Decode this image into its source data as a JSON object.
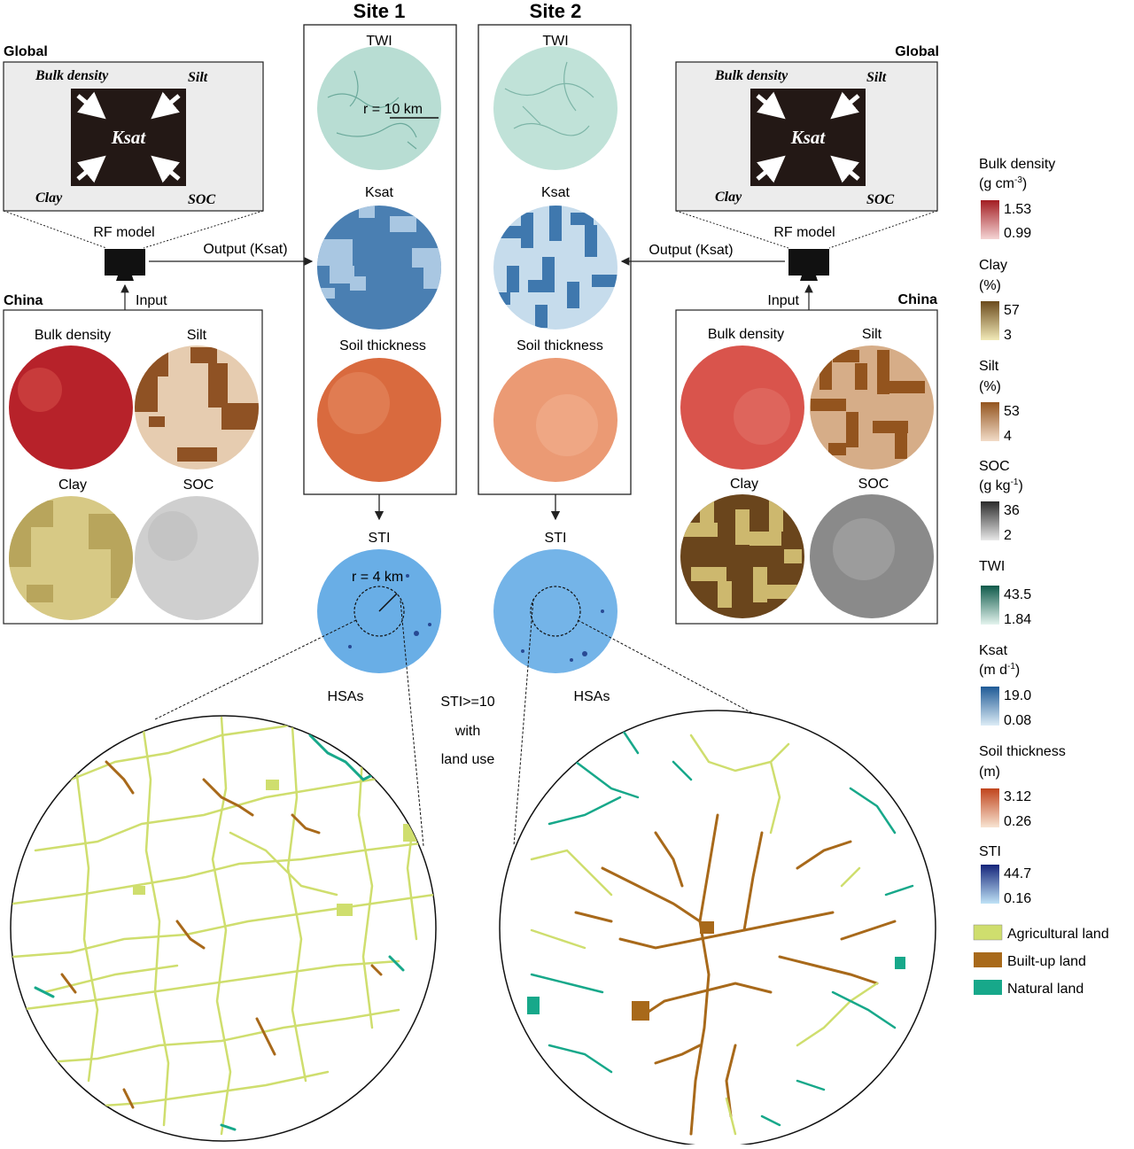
{
  "sites": {
    "site1": {
      "title": "Site 1"
    },
    "site2": {
      "title": "Site 2"
    }
  },
  "columns": {
    "twi": "TWI",
    "ksat": "Ksat",
    "soil_thickness": "Soil thickness",
    "sti": "STI",
    "scale_twi": "r = 10 km",
    "scale_sti": "r = 4 km"
  },
  "global_panel": {
    "label": "Global",
    "center": "Ksat",
    "bulk_density": "Bulk density",
    "silt": "Silt",
    "clay": "Clay",
    "soc": "SOC",
    "model": "RF model"
  },
  "flow": {
    "output": "Output (Ksat)",
    "input": "Input",
    "hsas": "HSAs",
    "criteria": [
      "STI>=10",
      "with",
      "land use"
    ]
  },
  "china_panel": {
    "label": "China",
    "bulk_density": "Bulk density",
    "silt": "Silt",
    "clay": "Clay",
    "soc": "SOC"
  },
  "legend": {
    "bulk_density": {
      "title": "Bulk density",
      "unit_pre": "(g cm",
      "unit_sup": "-3",
      "unit_post": ")",
      "max": "1.53",
      "min": "0.99",
      "c1": "#f4d4d4",
      "c2": "#a31d22"
    },
    "clay": {
      "title": "Clay",
      "unit": "(%)",
      "max": "57",
      "min": "3",
      "c1": "#f2eab8",
      "c2": "#6b4a1c"
    },
    "silt": {
      "title": "Silt",
      "unit": "(%)",
      "max": "53",
      "min": "4",
      "c1": "#f2dcc8",
      "c2": "#93541e"
    },
    "soc": {
      "title": "SOC",
      "unit_pre": "(g kg",
      "unit_sup": "-1",
      "unit_post": ")",
      "max": "36",
      "min": "2",
      "c1": "#e8e8e8",
      "c2": "#2a2a2a"
    },
    "twi": {
      "title": "TWI",
      "max": "43.5",
      "min": "1.84",
      "c1": "#e4f4ee",
      "c2": "#0e5a4a"
    },
    "ksat": {
      "title": "Ksat",
      "unit_pre": "(m d",
      "unit_sup": "-1",
      "unit_post": ")",
      "max": "19.0",
      "min": "0.08",
      "c1": "#dcecf6",
      "c2": "#1e5a96"
    },
    "soil_thickness": {
      "title": "Soil thickness",
      "unit": "(m)",
      "max": "3.12",
      "min": "0.26",
      "c1": "#f8e4d2",
      "c2": "#c0441c"
    },
    "sti": {
      "title": "STI",
      "max": "44.7",
      "min": "0.16",
      "c1": "#bfe2f6",
      "c2": "#14247a"
    },
    "land_use": [
      {
        "label": "Agricultural land",
        "color": "#cfde6e"
      },
      {
        "label": "Built-up land",
        "color": "#a8691a"
      },
      {
        "label": "Natural land",
        "color": "#17a88a"
      }
    ]
  },
  "colors": {
    "twi": "#b8ddd3",
    "ksat_dark": "#4a7fb2",
    "ksat_light": "#a9c7e2",
    "ksat2_bg": "#c6dcec",
    "thick1": "#d96a3e",
    "thick2": "#eb9a74",
    "sti": "#69aee6",
    "bulk1": "#b7222a",
    "bulk2": "#d9544c",
    "silt_light": "#e6ccb0",
    "silt_dark": "#8f5224",
    "clay_light": "#d7c985",
    "clay_dark": "#b8a55c",
    "clay2_dark": "#6a451c",
    "soc1": "#cfcfcf",
    "soc2": "#8a8a8a",
    "ag": "#cfde6e",
    "built": "#a8691a",
    "natural": "#17a88a"
  }
}
